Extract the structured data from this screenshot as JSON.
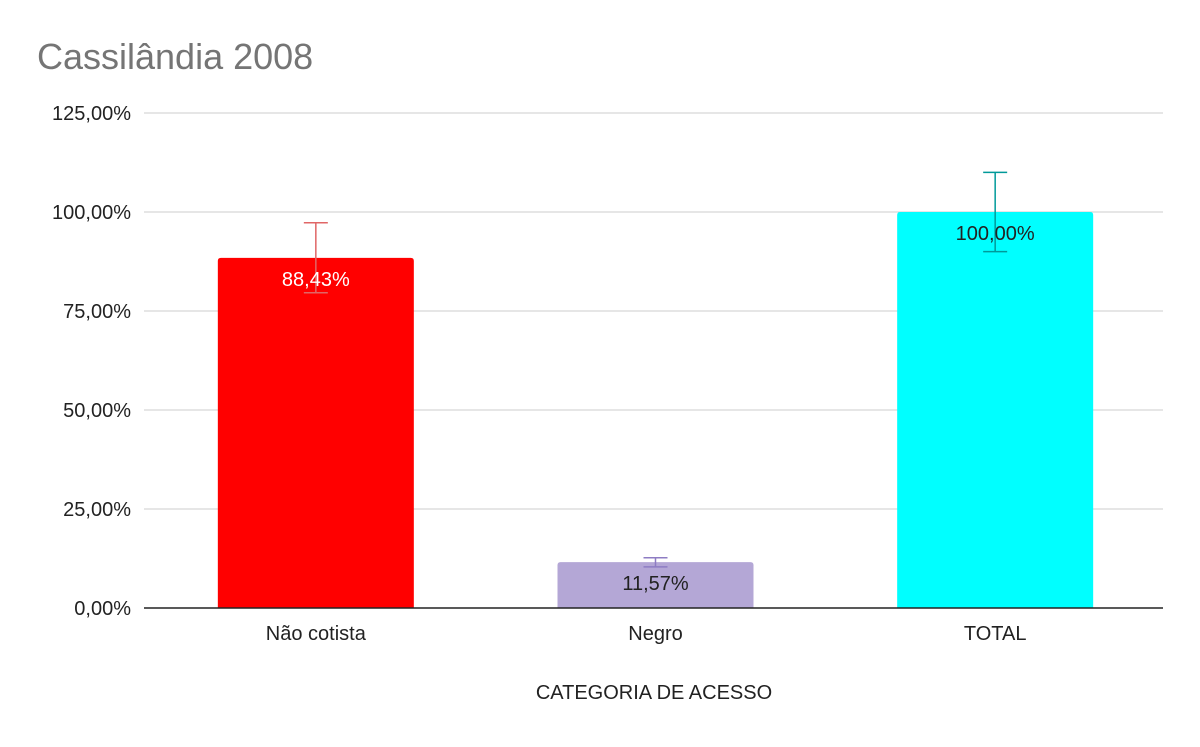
{
  "chart_data": {
    "type": "bar",
    "title": "Cassilândia 2008",
    "xlabel": "CATEGORIA DE ACESSO",
    "ylabel": "",
    "ylim": [
      0,
      125
    ],
    "yticks": [
      "0,00%",
      "25,00%",
      "50,00%",
      "75,00%",
      "100,00%",
      "125,00%"
    ],
    "ytick_values": [
      0,
      25,
      50,
      75,
      100,
      125
    ],
    "grid": true,
    "legend": "none",
    "categories": [
      "Não cotista",
      "Negro",
      "TOTAL"
    ],
    "values": [
      88.43,
      11.57,
      100.0
    ],
    "data_labels": [
      "88,43%",
      "11,57%",
      "100,00%"
    ],
    "error_bars": [
      {
        "low": 79.6,
        "high": 97.3
      },
      {
        "low": 10.4,
        "high": 12.7
      },
      {
        "low": 90.0,
        "high": 110.0
      }
    ],
    "colors": {
      "bars": [
        "#ff0000",
        "#b4a7d6",
        "#00ffff"
      ],
      "error_bars": [
        "#e06666",
        "#8e7cc3",
        "#009999"
      ],
      "data_labels": [
        "#ffffff",
        "#222222",
        "#222222"
      ],
      "title": "#757575",
      "text": "#222222",
      "grid": "#cccccc",
      "axis": "#222222"
    }
  }
}
